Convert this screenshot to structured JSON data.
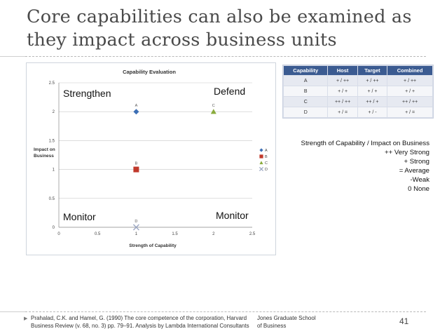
{
  "slide": {
    "title_line1": "Core capabilities can also be examined as",
    "title_line2": "they impact across business units",
    "page_number": "41"
  },
  "chart": {
    "title": "Capability Evaluation",
    "xlabel": "Strength of Capability",
    "ylabel_line1": "Impact on",
    "ylabel_line2": "Business",
    "quadrants": {
      "top_left": "Strengthen",
      "top_right": "Defend",
      "bottom_left": "Monitor",
      "bottom_right": "Monitor"
    },
    "legend": [
      {
        "label": "A",
        "marker": "diamond",
        "color": "#3d6fb5"
      },
      {
        "label": "B",
        "marker": "square",
        "color": "#c0392b"
      },
      {
        "label": "C",
        "marker": "triangle",
        "color": "#8aab3c"
      },
      {
        "label": "D",
        "marker": "x",
        "color": "#9aa6c2"
      }
    ]
  },
  "chart_data": {
    "type": "scatter",
    "title": "Capability Evaluation",
    "xlabel": "Strength of Capability",
    "ylabel": "Impact on Business",
    "xlim": [
      0,
      2.5
    ],
    "ylim": [
      0,
      2.5
    ],
    "x_ticks": [
      "0",
      "0.5",
      "1",
      "1.5",
      "2",
      "2.5"
    ],
    "y_ticks": [
      "0",
      "0.5",
      "1",
      "1.5",
      "2",
      "2.5"
    ],
    "grid": "horizontal",
    "legend_position": "right",
    "series": [
      {
        "name": "A",
        "x": [
          1
        ],
        "y": [
          2
        ],
        "color": "#3d6fb5",
        "marker": "diamond"
      },
      {
        "name": "B",
        "x": [
          1
        ],
        "y": [
          1
        ],
        "color": "#c0392b",
        "marker": "square"
      },
      {
        "name": "C",
        "x": [
          2
        ],
        "y": [
          2
        ],
        "color": "#8aab3c",
        "marker": "triangle"
      },
      {
        "name": "D",
        "x": [
          1
        ],
        "y": [
          0
        ],
        "color": "#9aa6c2",
        "marker": "x"
      }
    ]
  },
  "table": {
    "headers": [
      "Capability",
      "Host",
      "Target",
      "Combined"
    ],
    "rows": [
      [
        "A",
        "+ / ++",
        "+ / ++",
        "+ / ++"
      ],
      [
        "B",
        "+ / +",
        "+ / +",
        "+ / +"
      ],
      [
        "C",
        "++ / ++",
        "++ / +",
        "++ / ++"
      ],
      [
        "D",
        "+ / =",
        "+ / -",
        "+ / ="
      ]
    ]
  },
  "scale_legend": {
    "heading": "Strength of Capability / Impact on Business",
    "items": [
      "++ Very Strong",
      "+ Strong",
      "= Average",
      "-Weak",
      "0 None"
    ]
  },
  "footer": {
    "citation": "Prahalad, C.K. and Hamel, G. (1990) The core competence of the corporation, Harvard Business Review (v. 68, no. 3) pp. 79–91.  Analysis by Lambda International Consultants",
    "school": "Jones Graduate School of Business"
  },
  "colors": {
    "table_header": "#3b5b91",
    "title_text": "#4a4a4a"
  }
}
